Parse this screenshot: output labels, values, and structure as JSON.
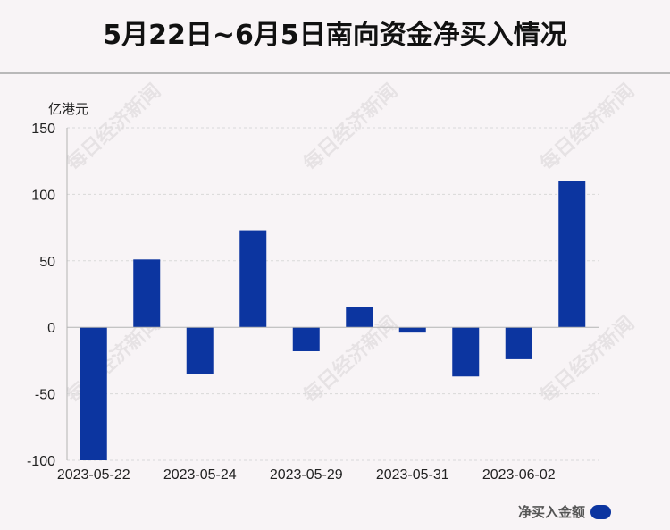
{
  "title": "5月22日~6月5日南向资金净买入情况",
  "unit_label": "亿港元",
  "watermark": "每日经济新闻",
  "legend_label": "净买入金额",
  "colors": {
    "bar": "#0c35a0",
    "grid": "#d9d9d9",
    "axis": "#b3b3b3",
    "text": "#222222"
  },
  "chart_data": {
    "type": "bar",
    "categories": [
      "2023-05-22",
      "2023-05-23",
      "2023-05-24",
      "2023-05-25",
      "2023-05-29",
      "2023-05-30",
      "2023-05-31",
      "2023-06-01",
      "2023-06-02",
      "2023-06-05"
    ],
    "tick_labels": [
      "2023-05-22",
      "2023-05-24",
      "2023-05-29",
      "2023-05-31",
      "2023-06-02"
    ],
    "series": [
      {
        "name": "净买入金额",
        "values": [
          -100,
          51,
          -35,
          73,
          -18,
          15,
          -4,
          -37,
          -24,
          110
        ]
      }
    ],
    "ylim": [
      -100,
      150
    ],
    "yticks": [
      -100,
      -50,
      0,
      50,
      100,
      150
    ],
    "ytick_labels": [
      "-100",
      "-50",
      "0",
      "50",
      "100",
      "150"
    ],
    "ylabel": "亿港元",
    "grid": true,
    "legend_position": "bottom-right"
  }
}
